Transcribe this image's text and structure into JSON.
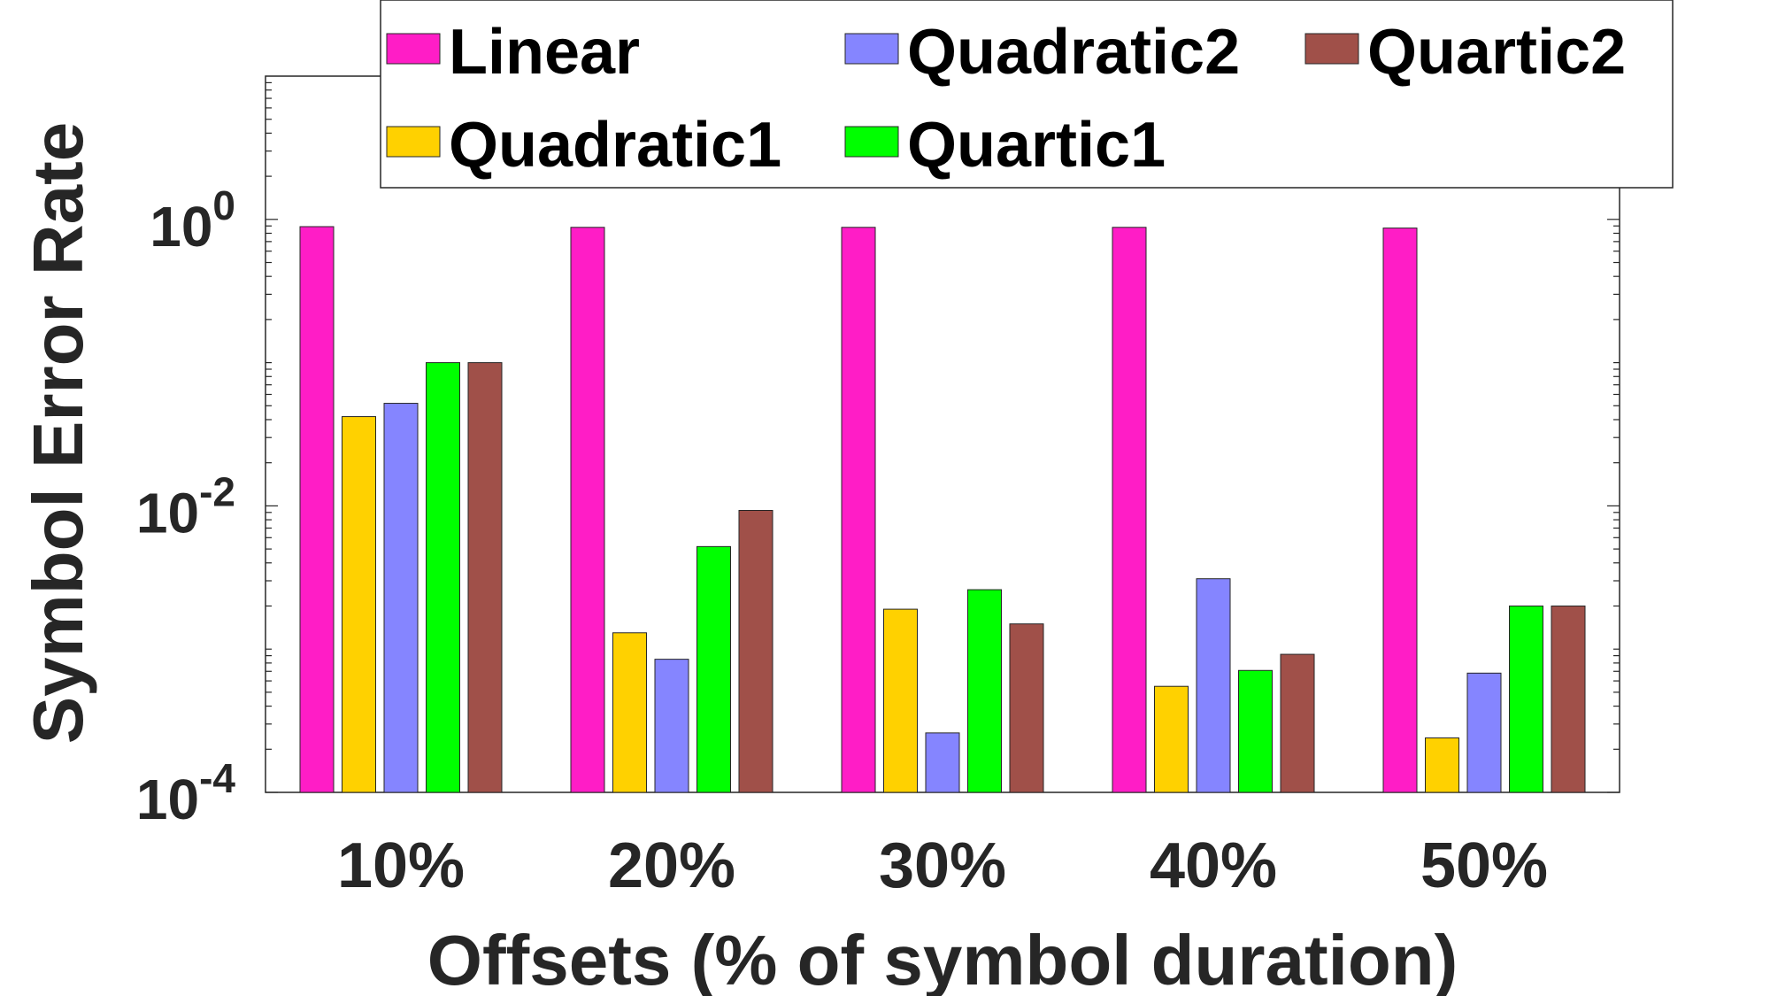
{
  "chart_data": {
    "type": "bar",
    "title": "",
    "xlabel": "Offsets (% of symbol duration)",
    "ylabel": "Symbol Error Rate",
    "yscale": "log",
    "ylim": [
      0.0001,
      10
    ],
    "ytick_labels": [
      {
        "value": 0.0001,
        "base": "10",
        "exp": "-4"
      },
      {
        "value": 0.01,
        "base": "10",
        "exp": "-2"
      },
      {
        "value": 1,
        "base": "10",
        "exp": "0"
      }
    ],
    "categories": [
      "10%",
      "20%",
      "30%",
      "40%",
      "50%"
    ],
    "series": [
      {
        "name": "Linear",
        "color": "#FF1DC6",
        "values": [
          0.89,
          0.88,
          0.88,
          0.88,
          0.87
        ]
      },
      {
        "name": "Quadratic1",
        "color": "#FFD100",
        "values": [
          0.042,
          0.0013,
          0.0019,
          0.00055,
          0.00024
        ]
      },
      {
        "name": "Quadratic2",
        "color": "#8585FF",
        "values": [
          0.052,
          0.00085,
          0.00026,
          0.0031,
          0.00068
        ]
      },
      {
        "name": "Quartic1",
        "color": "#00FF00",
        "values": [
          0.1,
          0.0052,
          0.0026,
          0.00071,
          0.002
        ]
      },
      {
        "name": "Quartic2",
        "color": "#A05049",
        "values": [
          0.1,
          0.0093,
          0.0015,
          0.00092,
          0.002
        ]
      }
    ],
    "grid": false,
    "legend_position": "top-right"
  }
}
